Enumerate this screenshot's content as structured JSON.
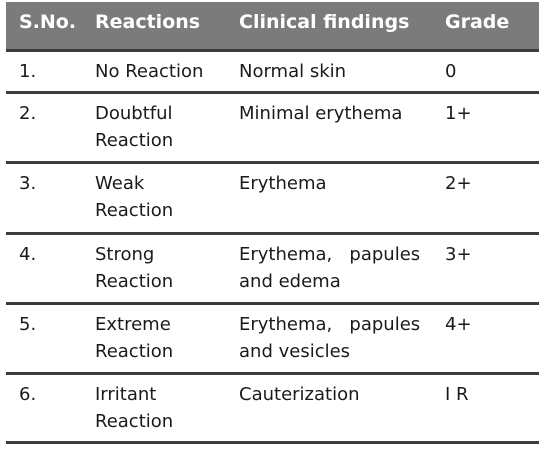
{
  "table": {
    "headers": [
      "S.No.",
      "Reactions",
      "Clinical findings",
      "Grade"
    ],
    "rows": [
      {
        "sno": "1.",
        "reaction": [
          "No Reaction"
        ],
        "findings": [
          "Normal skin"
        ],
        "grade": "0"
      },
      {
        "sno": "2.",
        "reaction": [
          "Doubtful",
          "Reaction"
        ],
        "findings": [
          "Minimal erythema"
        ],
        "grade": "1+"
      },
      {
        "sno": "3.",
        "reaction": [
          "Weak",
          "Reaction"
        ],
        "findings": [
          "Erythema"
        ],
        "grade": "2+"
      },
      {
        "sno": "4.",
        "reaction": [
          "Strong",
          "Reaction"
        ],
        "findings": [
          "Erythema,   papules",
          "and edema"
        ],
        "grade": "3+"
      },
      {
        "sno": "5.",
        "reaction": [
          "Extreme",
          "Reaction"
        ],
        "findings": [
          "Erythema,   papules",
          "and vesicles"
        ],
        "grade": "4+"
      },
      {
        "sno": "6.",
        "reaction": [
          "Irritant",
          "Reaction"
        ],
        "findings": [
          "Cauterization"
        ],
        "grade": "I R"
      }
    ]
  },
  "colors": {
    "header_bg": "#7b7b7b",
    "header_text": "#ffffff",
    "rule": "#3c3c3c",
    "text": "#1a1a1a"
  }
}
